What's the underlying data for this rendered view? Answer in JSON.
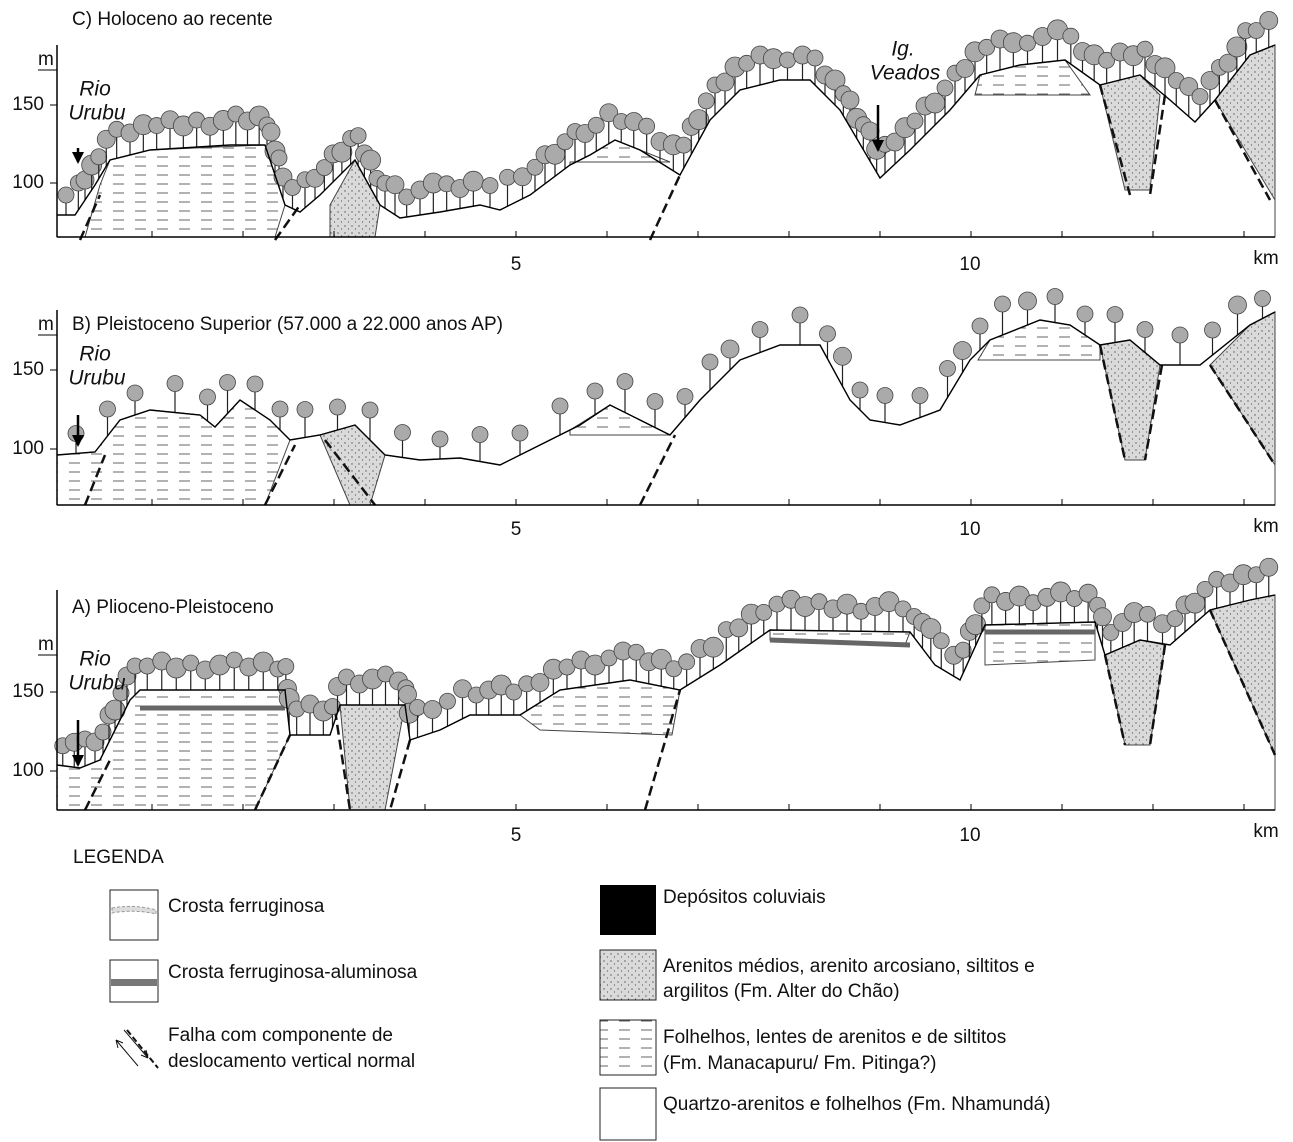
{
  "panels": [
    {
      "title": "C) Holoceno ao recente",
      "y_unit": "m",
      "y_ticks": [
        150,
        100
      ],
      "x_ticks": [
        5,
        10
      ],
      "x_unit": "km",
      "annotations": [
        {
          "lines": [
            "Rio",
            "Urubu"
          ]
        },
        {
          "lines": [
            "Ig.",
            "Veados"
          ]
        }
      ]
    },
    {
      "title": "B) Pleistoceno Superior (57.000 a 22.000 anos AP)",
      "y_unit": "m",
      "y_ticks": [
        150,
        100
      ],
      "x_ticks": [
        5,
        10
      ],
      "x_unit": "km",
      "annotations": [
        {
          "lines": [
            "Rio",
            "Urubu"
          ]
        }
      ]
    },
    {
      "title": "A) Plioceno-Pleistoceno",
      "y_unit": "m",
      "y_ticks": [
        150,
        100
      ],
      "x_ticks": [
        5,
        10
      ],
      "x_unit": "km",
      "annotations": [
        {
          "lines": [
            "Rio",
            "Urubu"
          ]
        }
      ]
    }
  ],
  "legend": {
    "title": "LEGENDA",
    "items": [
      {
        "lines": [
          "Crosta ferruginosa"
        ]
      },
      {
        "lines": [
          "Crosta ferruginosa-aluminosa"
        ]
      },
      {
        "lines": [
          "Falha com componente de",
          "deslocamento vertical  normal"
        ]
      },
      {
        "lines": [
          "Depósitos coluviais"
        ]
      },
      {
        "lines": [
          "Arenitos médios, arenito arcosiano, siltitos e",
          "argilitos (Fm. Alter do Chão)"
        ]
      },
      {
        "lines": [
          "Folhelhos, lentes de arenitos e de siltitos",
          "(Fm. Manacapuru/ Fm. Pitinga?)"
        ]
      },
      {
        "lines": [
          "Quartzo-arenitos e folhelhos (Fm. Nhamundá)"
        ]
      }
    ]
  }
}
